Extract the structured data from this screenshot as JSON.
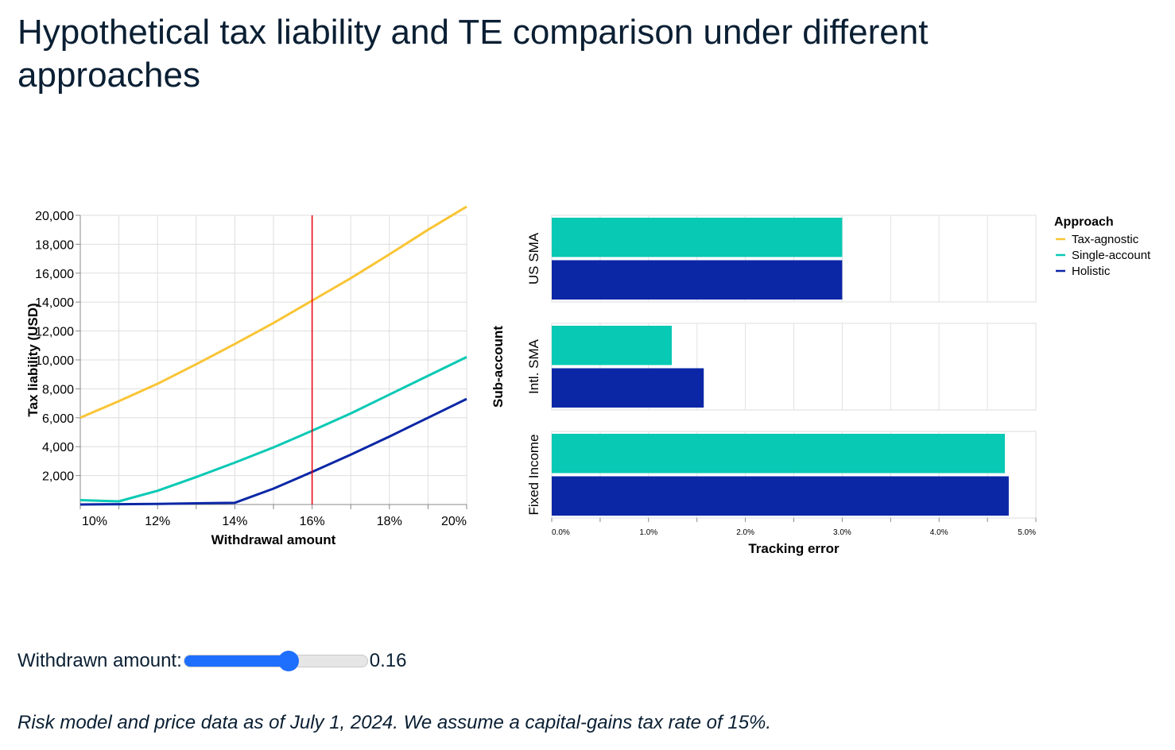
{
  "title": "Hypothetical tax liability and TE comparison under different approaches",
  "slider": {
    "label": "Withdrawn amount:",
    "value": "0.16",
    "fraction": 0.57
  },
  "footnote": "Risk model and price data as of July 1, 2024. We assume a capital-gains tax rate of 15%.",
  "colors": {
    "tax_agnostic": "#f9c536",
    "single_account": "#08c9b4",
    "holistic": "#0b27a6",
    "marker": "#e8000b"
  },
  "legend": {
    "title": "Approach",
    "items": [
      {
        "label": "Tax-agnostic",
        "color": "#f9c536"
      },
      {
        "label": "Single-account",
        "color": "#08c9b4"
      },
      {
        "label": "Holistic",
        "color": "#0b27a6"
      }
    ]
  },
  "chart_data": [
    {
      "type": "line",
      "xlabel": "Withdrawal amount",
      "ylabel": "Tax liability (USD)",
      "xlim": [
        0.1,
        0.2
      ],
      "ylim": [
        0,
        20000
      ],
      "x_ticks": [
        "10%",
        "12%",
        "14%",
        "16%",
        "18%",
        "20%"
      ],
      "y_ticks": [
        "2,000",
        "4,000",
        "6,000",
        "8,000",
        "10,000",
        "12,000",
        "14,000",
        "16,000",
        "18,000",
        "20,000"
      ],
      "marker_x": 0.16,
      "x": [
        0.1,
        0.11,
        0.12,
        0.13,
        0.14,
        0.15,
        0.16,
        0.17,
        0.18,
        0.19,
        0.2
      ],
      "series": [
        {
          "name": "Tax-agnostic",
          "values": [
            6000,
            7150,
            8350,
            9700,
            11100,
            12550,
            14100,
            15650,
            17300,
            19000,
            20600
          ]
        },
        {
          "name": "Single-account",
          "values": [
            300,
            220,
            950,
            1900,
            2900,
            3950,
            5100,
            6300,
            7600,
            8900,
            10200
          ]
        },
        {
          "name": "Holistic",
          "values": [
            0,
            20,
            40,
            80,
            120,
            1100,
            2250,
            3450,
            4700,
            6000,
            7300
          ]
        }
      ],
      "grid": true,
      "legend": "right"
    },
    {
      "type": "bar",
      "orientation": "horizontal",
      "xlabel": "Tracking error",
      "ylabel": "Sub-account",
      "xlim": [
        0,
        0.05
      ],
      "x_ticks": [
        "0.0%",
        "1.0%",
        "2.0%",
        "3.0%",
        "4.0%",
        "5.0%"
      ],
      "categories": [
        "US SMA",
        "Intl. SMA",
        "Fixed Income"
      ],
      "series": [
        {
          "name": "Single-account",
          "values": [
            0.03,
            0.0124,
            0.0468
          ]
        },
        {
          "name": "Holistic",
          "values": [
            0.03,
            0.0157,
            0.0472
          ]
        }
      ],
      "grid": true,
      "legend": "top-right"
    }
  ]
}
